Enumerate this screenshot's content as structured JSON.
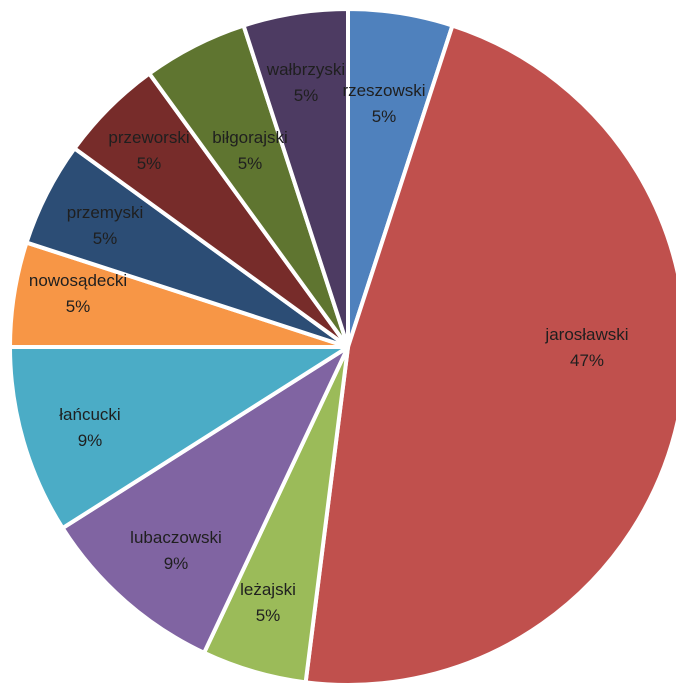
{
  "chart_data": {
    "type": "pie",
    "title": "",
    "start_angle_deg": 0,
    "direction": "clockwise",
    "slices": [
      {
        "label": "rzeszowski",
        "value": 5,
        "percent_label": "5%",
        "color": "#4F81BD"
      },
      {
        "label": "jarosławski",
        "value": 47,
        "percent_label": "47%",
        "color": "#C0504D"
      },
      {
        "label": "leżajski",
        "value": 5,
        "percent_label": "5%",
        "color": "#9BBB59"
      },
      {
        "label": "lubaczowski",
        "value": 9,
        "percent_label": "9%",
        "color": "#8064A2"
      },
      {
        "label": "łańcucki",
        "value": 9,
        "percent_label": "9%",
        "color": "#4BACC6"
      },
      {
        "label": "nowosądecki",
        "value": 5,
        "percent_label": "5%",
        "color": "#F79646"
      },
      {
        "label": "przemyski",
        "value": 5,
        "percent_label": "5%",
        "color": "#2C4D75"
      },
      {
        "label": "przeworski",
        "value": 5,
        "percent_label": "5%",
        "color": "#772C2A"
      },
      {
        "label": "biłgorajski",
        "value": 5,
        "percent_label": "5%",
        "color": "#5F7530"
      },
      {
        "label": "wałbrzyski",
        "value": 5,
        "percent_label": "5%",
        "color": "#4D3B62"
      }
    ]
  }
}
